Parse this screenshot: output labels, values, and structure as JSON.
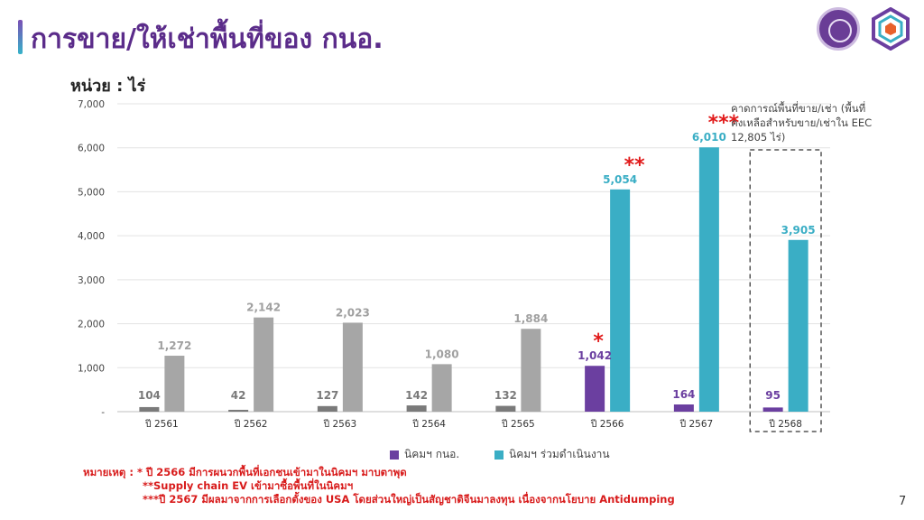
{
  "title": "การขาย/ให้เช่าพื้นที่ของ กนอ.",
  "unit_label": "หน่วย : ไร่",
  "forecast_note": "คาดการณ์พื้นที่ขาย/เช่า (พื้นที่คงเหลือสำหรับขาย/เช่าใน EEC 12,805 ไร่)",
  "legend": [
    {
      "name": "นิคมฯ กนอ.",
      "color": "#6b3fa0"
    },
    {
      "name": "นิคมฯ ร่วมดำเนินงาน",
      "color": "#3aaec5"
    }
  ],
  "notes": {
    "label": "หมายเหตุ :",
    "line1": "* ปี 2566 มีการผนวกพื้นที่เอกชนเข้ามาในนิคมฯ มาบตาพุด",
    "line2": "**Supply chain EV เข้ามาซื้อพื้นที่ในนิคมฯ",
    "line3": "***ปี 2567 มีผลมาจากการเลือกตั้งของ USA โดยส่วนใหญ่เป็นสัญชาติจีนมาลงทุน เนื่องจากนโยบาย Antidumping"
  },
  "page_number": "7",
  "chart_data": {
    "type": "bar",
    "categories": [
      "ปี 2561",
      "ปี 2562",
      "ปี 2563",
      "ปี 2564",
      "ปี 2565",
      "ปี 2566",
      "ปี 2567",
      "ปี 2568"
    ],
    "series": [
      {
        "name": "นิคมฯ กนอ.",
        "values": [
          104,
          42,
          127,
          142,
          132,
          1042,
          164,
          95
        ],
        "labels": [
          "104",
          "42",
          "127",
          "142",
          "132",
          "1,042",
          "164",
          "95"
        ]
      },
      {
        "name": "นิคมฯ ร่วมดำเนินงาน",
        "values": [
          1272,
          2142,
          2023,
          1080,
          1884,
          5054,
          6010,
          3905
        ],
        "labels": [
          "1,272",
          "2,142",
          "2,023",
          "1,080",
          "1,884",
          "5,054",
          "6,010",
          "3,905"
        ]
      }
    ],
    "highlight_from_index": 5,
    "annotations": [
      {
        "category_index": 5,
        "series_index": 0,
        "text": "*"
      },
      {
        "category_index": 5,
        "series_index": 1,
        "text": "**"
      },
      {
        "category_index": 6,
        "series_index": 1,
        "text": "***"
      }
    ],
    "forecast_category_index": 7,
    "ylim": [
      0,
      7000
    ],
    "y_ticks": [
      0,
      1000,
      2000,
      3000,
      4000,
      5000,
      6000,
      7000
    ],
    "y_tick_labels": [
      "-",
      "1,000",
      "2,000",
      "3,000",
      "4,000",
      "5,000",
      "6,000",
      "7,000"
    ],
    "muted_colors": {
      "dark": "#7a7a7a",
      "light": "#a6a6a6"
    },
    "grid": true,
    "legend_position": "bottom"
  }
}
